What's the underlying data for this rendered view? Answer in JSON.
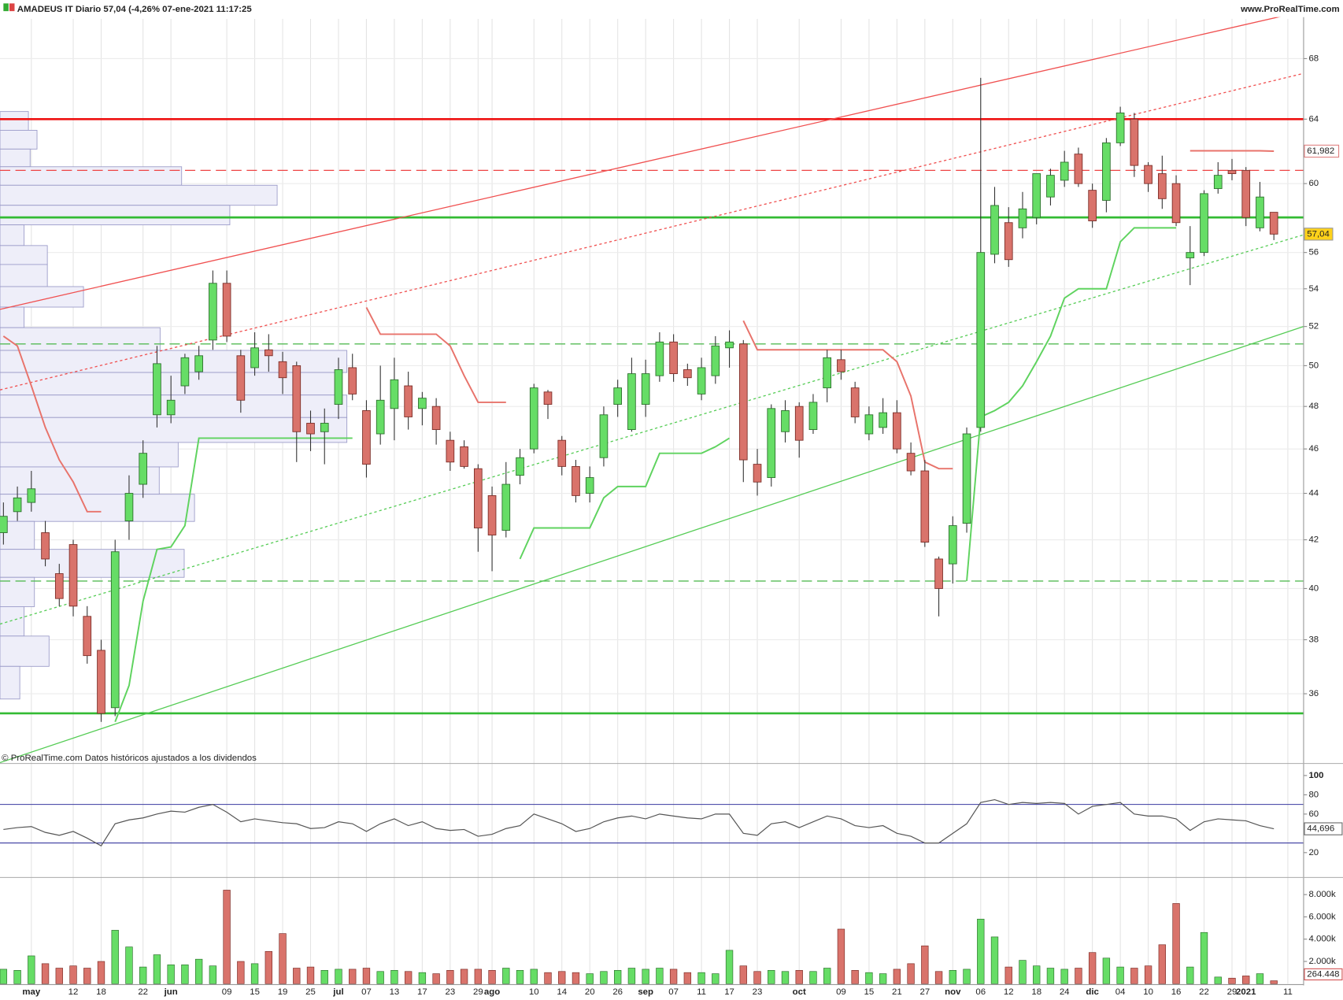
{
  "chart_data": [
    {
      "type": "candlestick",
      "title": "AMADEUS IT Diario 57,04 (-4,26% 07-ene-2021 11:17:25",
      "source": "www.ProRealTime.com",
      "note": "© ProRealTime.com  Datos históricos ajustados a los dividendos",
      "log_scale": true,
      "grid": true,
      "ylim": [
        33.6,
        71.8
      ],
      "yticks": [
        36,
        38,
        40,
        42,
        44,
        46,
        48,
        50,
        52,
        54,
        56,
        60,
        64,
        68
      ],
      "up_color": "#66dd66",
      "down_color": "#d9736b",
      "candles": [
        [
          42.3,
          43.6,
          41.8,
          43.0
        ],
        [
          43.2,
          44.3,
          42.8,
          43.8
        ],
        [
          43.6,
          45.0,
          43.2,
          44.2
        ],
        [
          42.3,
          42.8,
          40.9,
          41.2
        ],
        [
          40.6,
          41.0,
          39.3,
          39.6
        ],
        [
          41.8,
          42.0,
          38.9,
          39.3
        ],
        [
          38.9,
          39.3,
          37.1,
          37.4
        ],
        [
          37.6,
          38.0,
          35.0,
          35.3
        ],
        [
          35.5,
          42.0,
          35.2,
          41.5
        ],
        [
          42.8,
          44.8,
          42.0,
          44.0
        ],
        [
          44.4,
          46.4,
          43.8,
          45.8
        ],
        [
          47.6,
          51.0,
          47.0,
          50.1
        ],
        [
          47.6,
          49.5,
          47.2,
          48.3
        ],
        [
          49.0,
          50.6,
          48.6,
          50.4
        ],
        [
          49.7,
          51.0,
          49.3,
          50.5
        ],
        [
          51.3,
          55.0,
          50.8,
          54.3
        ],
        [
          54.3,
          55.0,
          51.2,
          51.5
        ],
        [
          50.5,
          50.8,
          47.7,
          48.3
        ],
        [
          49.9,
          51.7,
          49.5,
          50.9
        ],
        [
          50.8,
          51.6,
          49.7,
          50.5
        ],
        [
          50.2,
          50.7,
          48.6,
          49.4
        ],
        [
          50.0,
          50.2,
          45.4,
          46.8
        ],
        [
          47.2,
          47.8,
          45.9,
          46.7
        ],
        [
          46.8,
          47.9,
          45.3,
          47.2
        ],
        [
          48.1,
          50.4,
          47.4,
          49.8
        ],
        [
          49.9,
          50.6,
          48.3,
          48.6
        ],
        [
          47.8,
          48.3,
          44.7,
          45.3
        ],
        [
          46.7,
          50.0,
          46.2,
          48.3
        ],
        [
          47.9,
          50.4,
          46.4,
          49.3
        ],
        [
          49.0,
          49.7,
          46.9,
          47.5
        ],
        [
          47.9,
          48.7,
          47.1,
          48.4
        ],
        [
          48.0,
          48.4,
          46.2,
          46.9
        ],
        [
          46.4,
          46.8,
          45.0,
          45.4
        ],
        [
          46.1,
          46.4,
          45.1,
          45.2
        ],
        [
          45.1,
          45.3,
          41.5,
          42.5
        ],
        [
          43.9,
          44.3,
          40.7,
          42.2
        ],
        [
          42.4,
          45.4,
          42.1,
          44.4
        ],
        [
          44.8,
          46.0,
          44.4,
          45.6
        ],
        [
          46.0,
          49.1,
          45.8,
          48.9
        ],
        [
          48.7,
          48.8,
          47.4,
          48.1
        ],
        [
          46.4,
          46.6,
          44.8,
          45.2
        ],
        [
          45.2,
          45.5,
          43.6,
          43.9
        ],
        [
          44.0,
          45.2,
          43.6,
          44.7
        ],
        [
          45.6,
          48.0,
          45.2,
          47.6
        ],
        [
          48.1,
          49.3,
          47.5,
          48.9
        ],
        [
          46.9,
          50.4,
          46.8,
          49.6
        ],
        [
          48.1,
          50.3,
          47.5,
          49.6
        ],
        [
          49.5,
          51.7,
          49.2,
          51.2
        ],
        [
          51.2,
          51.6,
          49.2,
          49.6
        ],
        [
          49.8,
          50.1,
          49.0,
          49.4
        ],
        [
          48.6,
          50.4,
          48.3,
          49.9
        ],
        [
          49.5,
          51.5,
          49.1,
          51.0
        ],
        [
          50.9,
          51.8,
          49.9,
          51.2
        ],
        [
          51.1,
          51.3,
          44.5,
          45.5
        ],
        [
          45.3,
          46.0,
          43.9,
          44.5
        ],
        [
          44.7,
          48.1,
          44.3,
          47.9
        ],
        [
          46.8,
          48.3,
          46.3,
          47.8
        ],
        [
          48.0,
          48.2,
          45.6,
          46.4
        ],
        [
          46.9,
          48.6,
          46.7,
          48.2
        ],
        [
          48.9,
          50.8,
          48.2,
          50.4
        ],
        [
          50.3,
          50.8,
          49.3,
          49.7
        ],
        [
          48.9,
          49.2,
          47.2,
          47.5
        ],
        [
          46.7,
          48.0,
          46.4,
          47.6
        ],
        [
          47.0,
          48.4,
          46.7,
          47.7
        ],
        [
          47.7,
          48.3,
          45.8,
          46.0
        ],
        [
          45.8,
          46.3,
          44.8,
          45.0
        ],
        [
          45.0,
          45.5,
          41.7,
          41.9
        ],
        [
          41.2,
          41.3,
          38.9,
          40.0
        ],
        [
          41.0,
          43.0,
          40.2,
          42.6
        ],
        [
          42.7,
          47.0,
          42.3,
          46.7
        ],
        [
          47.0,
          66.7,
          46.8,
          56.0
        ],
        [
          55.9,
          59.8,
          55.4,
          58.7
        ],
        [
          57.7,
          58.6,
          55.2,
          55.6
        ],
        [
          57.4,
          59.5,
          56.8,
          58.5
        ],
        [
          58.0,
          60.6,
          57.6,
          60.6
        ],
        [
          59.2,
          60.9,
          58.7,
          60.5
        ],
        [
          60.2,
          62.0,
          59.8,
          61.3
        ],
        [
          61.8,
          62.2,
          59.8,
          60.0
        ],
        [
          59.6,
          60.0,
          57.4,
          57.8
        ],
        [
          59.0,
          62.8,
          58.3,
          62.5
        ],
        [
          62.5,
          64.8,
          62.3,
          64.4
        ],
        [
          64.0,
          64.4,
          60.4,
          61.1
        ],
        [
          61.1,
          61.3,
          59.5,
          60.0
        ],
        [
          60.6,
          61.7,
          58.5,
          59.1
        ],
        [
          60.0,
          60.5,
          57.5,
          57.7
        ],
        [
          55.7,
          57.5,
          54.2,
          56.0
        ],
        [
          56.0,
          59.6,
          55.8,
          59.4
        ],
        [
          59.7,
          61.3,
          59.4,
          60.5
        ],
        [
          60.8,
          61.5,
          60.2,
          60.6
        ],
        [
          60.8,
          61.0,
          57.5,
          58.0
        ],
        [
          57.4,
          60.1,
          57.2,
          59.2
        ],
        [
          58.3,
          58.3,
          56.7,
          57.04
        ],
        null
      ],
      "overlays": [
        {
          "color": "#e8736b",
          "values": [
            51.5,
            51.0,
            49.0,
            47.0,
            45.5,
            44.5,
            43.2,
            43.2,
            null,
            null,
            null,
            null,
            null,
            null,
            null,
            null,
            null,
            null,
            null,
            null,
            null,
            null,
            null,
            null,
            null,
            null,
            53.0,
            51.6,
            51.6,
            51.6,
            51.6,
            51.6,
            51.0,
            49.5,
            48.2,
            48.2,
            48.2,
            null,
            null,
            null,
            null,
            null,
            null,
            null,
            null,
            null,
            null,
            null,
            null,
            null,
            null,
            null,
            null,
            52.3,
            50.8,
            50.8,
            50.8,
            50.8,
            50.8,
            50.8,
            50.8,
            50.8,
            50.8,
            50.8,
            50.2,
            48.5,
            45.4,
            45.1,
            45.1,
            null,
            null,
            null,
            null,
            null,
            null,
            null,
            null,
            null,
            null,
            null,
            null,
            null,
            null,
            null,
            null,
            62,
            62,
            62,
            62,
            62,
            62,
            61.982,
            null
          ]
        },
        {
          "color": "#5fd35f",
          "values": [
            null,
            null,
            null,
            null,
            null,
            null,
            null,
            null,
            35.0,
            36.3,
            39.5,
            41.6,
            41.7,
            42.6,
            46.5,
            46.5,
            46.5,
            46.5,
            46.5,
            46.5,
            46.5,
            46.5,
            46.5,
            46.5,
            46.5,
            46.5,
            null,
            null,
            null,
            null,
            null,
            null,
            null,
            null,
            null,
            null,
            null,
            41.2,
            42.5,
            42.5,
            42.5,
            42.5,
            42.5,
            43.8,
            44.3,
            44.3,
            44.3,
            45.8,
            45.8,
            45.8,
            45.8,
            46.1,
            46.5,
            null,
            null,
            null,
            null,
            null,
            null,
            null,
            null,
            null,
            null,
            null,
            null,
            null,
            null,
            null,
            null,
            40.3,
            47.5,
            47.8,
            48.2,
            49.0,
            50.2,
            51.5,
            53.5,
            54.0,
            54.0,
            54.0,
            56.6,
            57.4,
            57.4,
            57.4,
            57.4,
            null,
            null,
            null,
            null,
            null,
            null,
            null,
            null
          ]
        }
      ],
      "levels": [
        {
          "value": 64,
          "color": "#ee1111",
          "style": "solid"
        },
        {
          "value": 58,
          "color": "#33bb33",
          "style": "solid"
        },
        {
          "value": 35.3,
          "color": "#33bb33",
          "style": "solid"
        },
        {
          "value": 51.1,
          "color": "#55bb55",
          "style": "dashed"
        },
        {
          "value": 40.3,
          "color": "#55bb55",
          "style": "dashed"
        },
        {
          "value": 60.8,
          "color": "#ee4444",
          "style": "dashed"
        }
      ],
      "trend_lines": [
        {
          "color": "#f05050",
          "style": "solid",
          "values": [
            52.9,
            71.3
          ]
        },
        {
          "color": "#f05050",
          "style": "dotted",
          "values": [
            48.8,
            67.0
          ]
        },
        {
          "color": "#55cc55",
          "style": "solid",
          "values": [
            33.6,
            52.0
          ]
        },
        {
          "color": "#55cc55",
          "style": "dotted",
          "values": [
            38.6,
            57.0
          ]
        }
      ],
      "volume_profile": {
        "bins": [
          64.49,
          63.29,
          62.11,
          61.02,
          59.9,
          58.71,
          57.57,
          56.39,
          55.33,
          54.12,
          53.02,
          51.94,
          50.77,
          49.66,
          48.55,
          47.47,
          46.3,
          45.18,
          43.96,
          42.78,
          41.6,
          40.45,
          39.28,
          38.14,
          37.0,
          35.81
        ],
        "values": [
          33,
          43,
          35,
          211,
          322,
          267,
          28,
          55,
          55,
          97,
          28,
          186,
          403,
          393,
          403,
          403,
          207,
          185,
          226,
          40,
          214,
          40,
          28,
          57,
          23
        ]
      },
      "last_price": {
        "value": 57.04,
        "label": "57,04"
      },
      "stop_label": {
        "value": 61.982,
        "label": "61,982"
      }
    },
    {
      "type": "line",
      "color": "#555555",
      "level_color": "#3a3aa0",
      "ylim": [
        -4,
        110.7
      ],
      "yticks": [
        20,
        60,
        80,
        100
      ],
      "levels": [
        70,
        30
      ],
      "values": [
        44,
        46,
        47,
        41,
        38,
        42,
        35,
        27,
        50,
        54,
        56,
        60,
        63,
        62,
        67,
        70,
        62,
        52,
        55,
        53,
        51,
        50,
        45,
        46,
        52,
        50,
        42,
        50,
        55,
        48,
        52,
        45,
        43,
        44,
        37,
        39,
        45,
        48,
        60,
        55,
        50,
        42,
        45,
        52,
        56,
        58,
        55,
        60,
        58,
        56,
        55,
        60,
        60,
        40,
        38,
        50,
        52,
        46,
        52,
        58,
        55,
        48,
        46,
        48,
        40,
        37,
        30,
        30,
        40,
        50,
        72,
        75,
        70,
        72,
        71,
        72,
        71,
        60,
        68,
        70,
        72,
        60,
        58,
        58,
        55,
        43,
        52,
        55,
        54,
        53,
        48,
        44.696,
        null
      ],
      "last_label": {
        "value": 44.696,
        "label": "44,696"
      }
    },
    {
      "type": "bar",
      "ylim": [
        0,
        9460000
      ],
      "yticks": [
        {
          "value": 2000000,
          "label": "2.000k"
        },
        {
          "value": 4000000,
          "label": "4.000k"
        },
        {
          "value": 6000000,
          "label": "6.000k"
        },
        {
          "value": 8000000,
          "label": "8.000k"
        }
      ],
      "categories": [
        null,
        null,
        "may",
        null,
        null,
        "12",
        null,
        "18",
        null,
        null,
        "22",
        null,
        "jun",
        null,
        null,
        null,
        "09",
        null,
        "15",
        null,
        "19",
        null,
        "25",
        null,
        "jul",
        null,
        "07",
        null,
        "13",
        null,
        "17",
        null,
        "23",
        null,
        "29",
        "ago",
        null,
        null,
        "10",
        null,
        "14",
        null,
        "20",
        null,
        "26",
        null,
        "sep",
        null,
        "07",
        null,
        "11",
        null,
        "17",
        null,
        "23",
        null,
        null,
        "oct",
        null,
        null,
        "09",
        null,
        "15",
        null,
        "21",
        null,
        "27",
        null,
        "nov",
        null,
        "06",
        null,
        "12",
        null,
        "18",
        null,
        "24",
        null,
        "dic",
        null,
        "04",
        null,
        "10",
        null,
        "16",
        null,
        "22",
        null,
        "29",
        "2021",
        null,
        null,
        "11"
      ],
      "values": [
        1300000,
        1200000,
        2500000,
        1800000,
        1400000,
        1600000,
        1400000,
        2000000,
        4800000,
        3300000,
        1500000,
        2600000,
        1700000,
        1700000,
        2200000,
        1600000,
        8400000,
        2000000,
        1800000,
        2900000,
        4500000,
        1400000,
        1500000,
        1200000,
        1300000,
        1300000,
        1400000,
        1100000,
        1200000,
        1100000,
        1000000,
        900000,
        1200000,
        1300000,
        1300000,
        1200000,
        1400000,
        1200000,
        1300000,
        1000000,
        1100000,
        1000000,
        900000,
        1100000,
        1200000,
        1400000,
        1300000,
        1400000,
        1300000,
        1000000,
        1000000,
        900000,
        3000000,
        1600000,
        1100000,
        1200000,
        1100000,
        1200000,
        1100000,
        1400000,
        4900000,
        1200000,
        1000000,
        900000,
        1300000,
        1800000,
        3400000,
        1100000,
        1200000,
        1300000,
        5800000,
        4200000,
        1500000,
        2100000,
        1600000,
        1400000,
        1300000,
        1400000,
        2800000,
        2300000,
        1500000,
        1400000,
        1600000,
        3500000,
        7200000,
        1500000,
        4600000,
        600000,
        500000,
        700000,
        900000,
        264448,
        null
      ],
      "last_label": {
        "value": 264448,
        "label": "264.448"
      }
    }
  ]
}
